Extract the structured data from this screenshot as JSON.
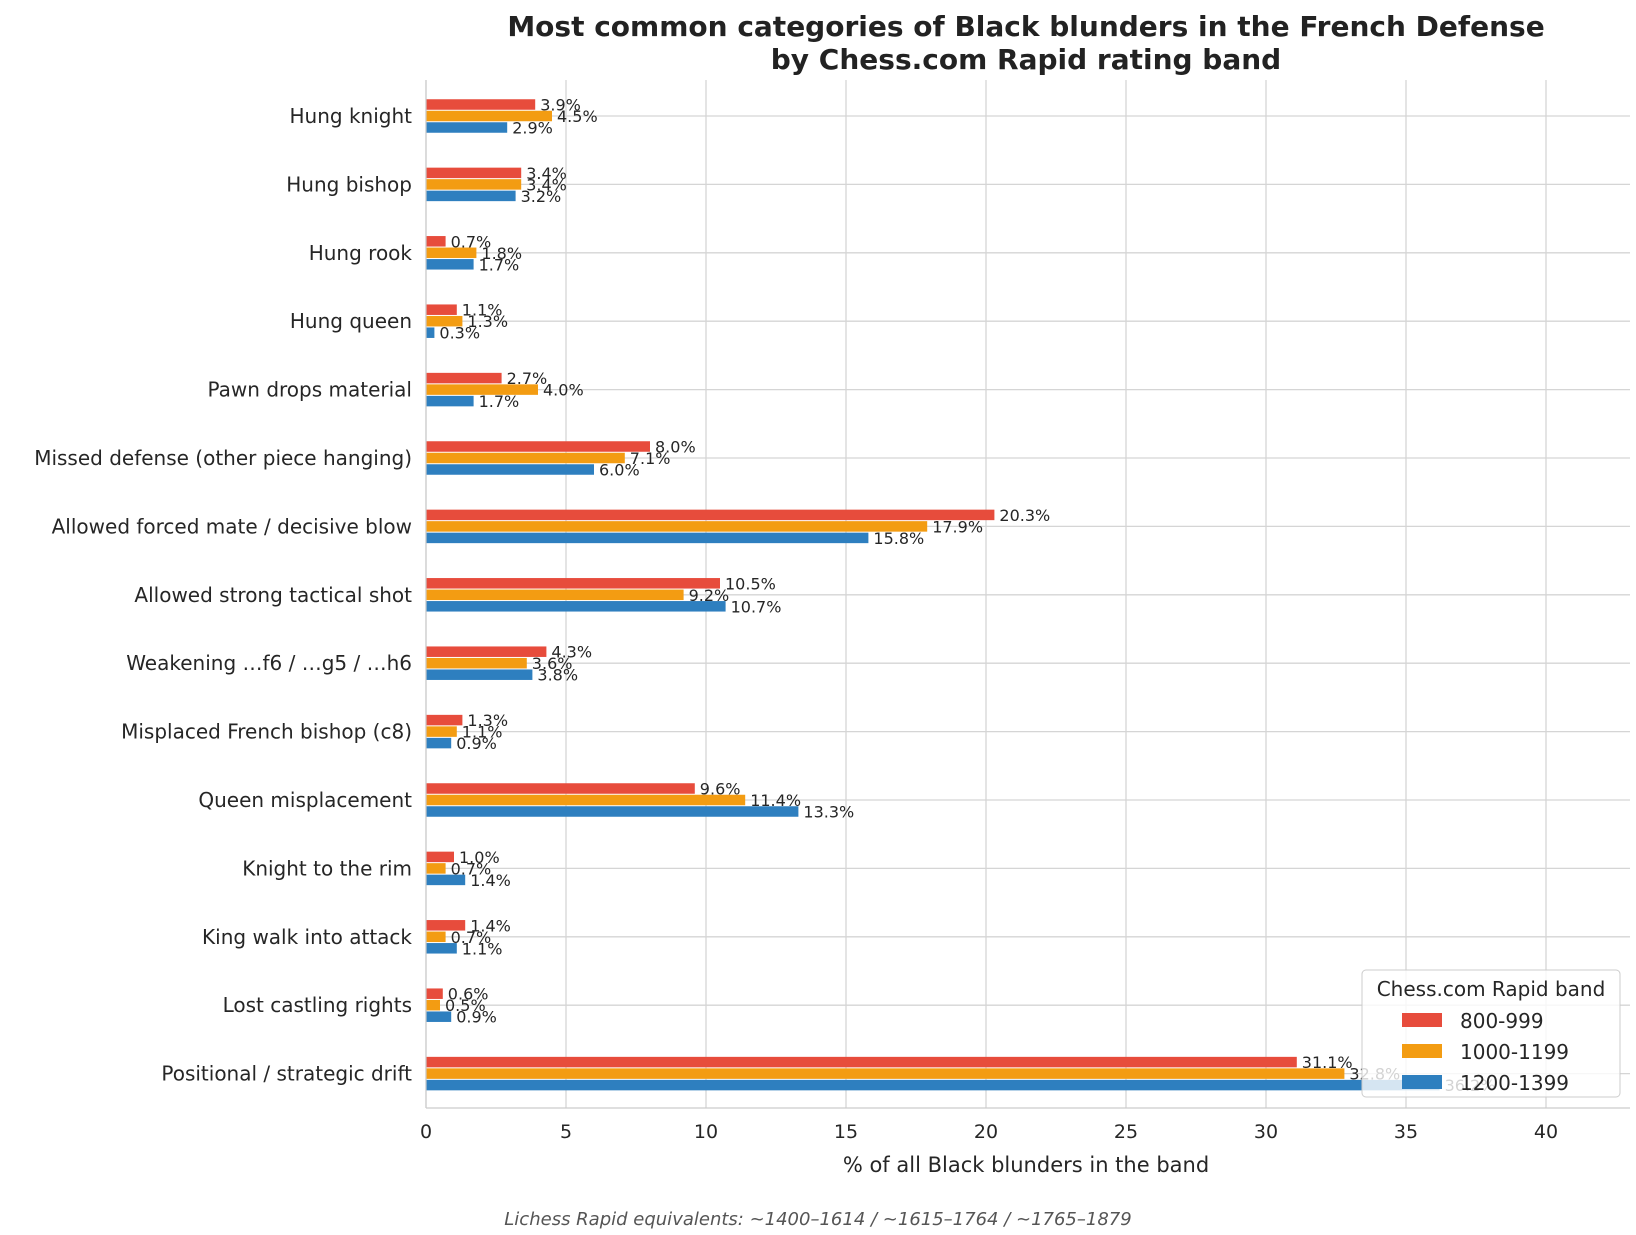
{
  "chart_data": {
    "type": "bar",
    "orientation": "horizontal",
    "title": "Most common categories of Black blunders in the French Defense",
    "subtitle": "by Chess.com Rapid rating band",
    "xlabel": "% of all Black blunders in the band",
    "ylabel": "",
    "xlim": [
      0,
      43
    ],
    "xticks": [
      "0",
      "5",
      "10",
      "15",
      "20",
      "25",
      "30",
      "35",
      "40"
    ],
    "grid": true,
    "legend_title": "Chess.com Rapid band",
    "legend_position": "lower-right",
    "categories": [
      "Hung knight",
      "Hung bishop",
      "Hung rook",
      "Hung queen",
      "Pawn drops material",
      "Missed defense (other piece hanging)",
      "Allowed forced mate / decisive blow",
      "Allowed strong tactical shot",
      "Weakening …f6 / …g5 / …h6",
      "Misplaced French bishop (c8)",
      "Queen misplacement",
      "Knight to the rim",
      "King walk into attack",
      "Lost castling rights",
      "Positional / strategic drift"
    ],
    "series": [
      {
        "name": "800-999",
        "color": "#e74c3c",
        "values": [
          3.9,
          3.4,
          0.7,
          1.1,
          2.7,
          8.0,
          20.3,
          10.5,
          4.3,
          1.3,
          9.6,
          1.0,
          1.4,
          0.6,
          31.1
        ]
      },
      {
        "name": "1000-1199",
        "color": "#f39c12",
        "values": [
          4.5,
          3.4,
          1.8,
          1.3,
          4.0,
          7.1,
          17.9,
          9.2,
          3.6,
          1.1,
          11.4,
          0.7,
          0.7,
          0.5,
          32.8
        ]
      },
      {
        "name": "1200-1399",
        "color": "#2e7fbf",
        "values": [
          2.9,
          3.2,
          1.7,
          0.3,
          1.7,
          6.0,
          15.8,
          10.7,
          3.8,
          0.9,
          13.3,
          1.4,
          1.1,
          0.9,
          36.2
        ]
      }
    ],
    "value_labels": [
      [
        "3.9%",
        "3.4%",
        "0.7%",
        "1.1%",
        "2.7%",
        "8.0%",
        "20.3%",
        "10.5%",
        "4.3%",
        "1.3%",
        "9.6%",
        "1.0%",
        "1.4%",
        "0.6%",
        "31.1%"
      ],
      [
        "4.5%",
        "3.4%",
        "1.8%",
        "1.3%",
        "4.0%",
        "7.1%",
        "17.9%",
        "9.2%",
        "3.6%",
        "1.1%",
        "11.4%",
        "0.7%",
        "0.7%",
        "0.5%",
        "32.8%"
      ],
      [
        "2.9%",
        "3.2%",
        "1.7%",
        "0.3%",
        "1.7%",
        "6.0%",
        "15.8%",
        "10.7%",
        "3.8%",
        "0.9%",
        "13.3%",
        "1.4%",
        "1.1%",
        "0.9%",
        "36.2%"
      ]
    ],
    "footnote": "Lichess Rapid equivalents: ~1400–1614 / ~1615–1764 / ~1765–1879"
  }
}
